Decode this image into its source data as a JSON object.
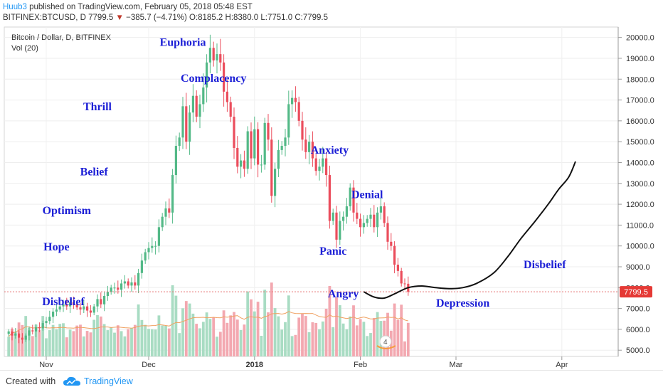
{
  "header": {
    "author": "Huub3",
    "published_text": " published on TradingView.com, February 05, 2018 05:48 EST",
    "symbol": "BITFINEX:BTCUSD, D",
    "last": "7799.5",
    "change": "−385.7 (−4.71%)",
    "ohlc": "O:8185.2 H:8380.0 L:7751.0 C:7799.5"
  },
  "legend": {
    "title": "Bitcoin / Dollar, D, BITFINEX",
    "vol": "Vol (20)"
  },
  "footer": {
    "created": "Created with",
    "brand": "TradingView"
  },
  "colors": {
    "up": "#53b987",
    "down": "#eb4d5c",
    "vol_up": "#a9dcc3",
    "vol_down": "#f3a8b0",
    "vol_ma": "#f0a060",
    "annotation": "#1c1fd6",
    "price_line": "#e57373",
    "price_label_bg": "#e53935"
  },
  "chart_data": {
    "type": "candlestick",
    "title": "Bitcoin / Dollar, D, BITFINEX",
    "y_axis": {
      "min": 4700,
      "max": 20500,
      "ticks": [
        "5000.0",
        "6000.0",
        "7000.0",
        "8000.0",
        "9000.0",
        "10000.0",
        "11000.0",
        "12000.0",
        "13000.0",
        "14000.0",
        "15000.0",
        "16000.0",
        "17000.0",
        "18000.0",
        "19000.0",
        "20000.0"
      ]
    },
    "x_axis": {
      "ticks": [
        {
          "day": 0,
          "label": "Nov"
        },
        {
          "day": 30,
          "label": "Dec"
        },
        {
          "day": 61,
          "label": "2018"
        },
        {
          "day": 92,
          "label": "Feb"
        },
        {
          "day": 120,
          "label": "Mar"
        },
        {
          "day": 151,
          "label": "Apr"
        }
      ]
    },
    "last_price": "7799.5",
    "first_day": -11,
    "closes": [
      5900,
      5700,
      5800,
      5600,
      5500,
      5700,
      5950,
      5900,
      6100,
      6050,
      6300,
      6400,
      6600,
      6850,
      6950,
      7100,
      7200,
      7100,
      7300,
      7200,
      7050,
      6950,
      7100,
      6900,
      6800,
      7100,
      7450,
      7200,
      7600,
      7800,
      8000,
      8000,
      7900,
      8200,
      8300,
      8100,
      8250,
      8100,
      8700,
      9300,
      9700,
      9900,
      10000,
      10000,
      10900,
      11400,
      11800,
      11600,
      13400,
      14800,
      15200,
      16700,
      15000,
      16400,
      17200,
      16200,
      16800,
      17600,
      18800,
      19500,
      18900,
      19200,
      18800,
      17400,
      16900,
      16200,
      14700,
      13800,
      14100,
      13700,
      15500,
      14200,
      15600,
      13900,
      13900,
      15900,
      15100,
      12400,
      13700,
      14600,
      14800,
      15200,
      16800,
      17100,
      16900,
      16000,
      15100,
      14500,
      15000,
      14200,
      13600,
      13800,
      14200,
      13400,
      11200,
      11600,
      10300,
      11200,
      11400,
      11900,
      12800,
      11600,
      11300,
      10900,
      11100,
      11300,
      11500,
      10900,
      11600,
      11900,
      11100,
      10200,
      10000,
      9100,
      8800,
      8200,
      8185,
      7799.5
    ],
    "annotations": [
      {
        "label": "Disbelief",
        "day": 5,
        "price": 7150
      },
      {
        "label": "Hope",
        "day": 3,
        "price": 9780
      },
      {
        "label": "Optimism",
        "day": 6,
        "price": 11530
      },
      {
        "label": "Belief",
        "day": 14,
        "price": 13380
      },
      {
        "label": "Thrill",
        "day": 15,
        "price": 16500
      },
      {
        "label": "Euphoria",
        "day": 40,
        "price": 19600
      },
      {
        "label": "Complacency",
        "day": 49,
        "price": 17870
      },
      {
        "label": "Anxiety",
        "day": 83,
        "price": 14430
      },
      {
        "label": "Denial",
        "day": 94,
        "price": 12290
      },
      {
        "label": "Panic",
        "day": 84,
        "price": 9580
      },
      {
        "label": "Angry",
        "day": 87,
        "price": 7530
      },
      {
        "label": "Depression",
        "day": 122,
        "price": 7090
      },
      {
        "label": "Disbelief",
        "day": 146,
        "price": 8930
      }
    ],
    "projection": [
      [
        93,
        7800
      ],
      [
        96,
        7550
      ],
      [
        99,
        7500
      ],
      [
        102,
        7700
      ],
      [
        106,
        8000
      ],
      [
        110,
        8080
      ],
      [
        114,
        8000
      ],
      [
        118,
        7950
      ],
      [
        122,
        8000
      ],
      [
        126,
        8200
      ],
      [
        131,
        8700
      ],
      [
        135,
        9450
      ],
      [
        139,
        10350
      ],
      [
        143,
        11150
      ],
      [
        147,
        12000
      ],
      [
        150,
        12700
      ],
      [
        153,
        13300
      ],
      [
        155,
        14050
      ]
    ]
  }
}
